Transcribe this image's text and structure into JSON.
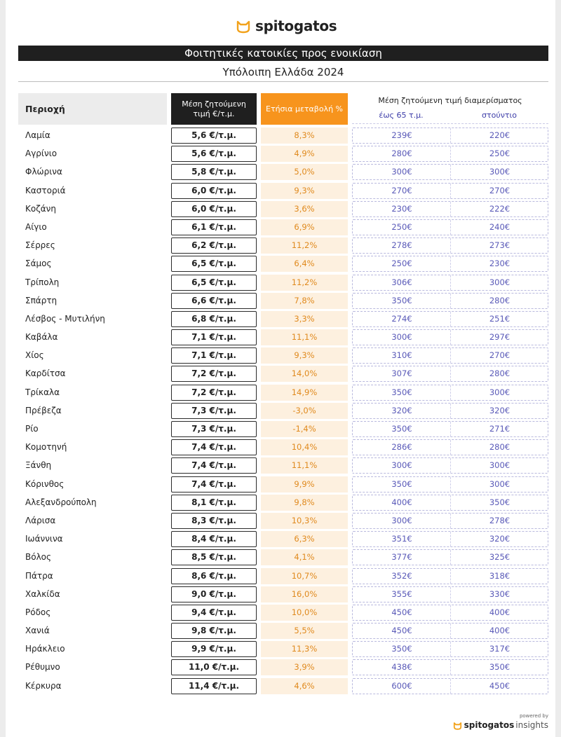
{
  "brand": {
    "name": "spitogatos"
  },
  "header": {
    "title": "Φοιτητικές κατοικίες προς ενοικίαση",
    "subtitle": "Υπόλοιπη Ελλάδα 2024"
  },
  "columns": {
    "region": "Περιοχή",
    "price": "Μέση ζητούμενη τιμή €/τ.μ.",
    "change": "Ετήσια μεταβολή %",
    "apartment": "Μέση ζητούμενη τιμή διαμερίσματος",
    "apt_up_to_65": "έως 65 τ.μ.",
    "apt_studio": "στούντιο"
  },
  "rows": [
    {
      "region": "Λαμία",
      "price": "5,6 €/τ.μ.",
      "change": "8,3%",
      "apt65": "239€",
      "studio": "220€"
    },
    {
      "region": "Αγρίνιο",
      "price": "5,6 €/τ.μ.",
      "change": "4,9%",
      "apt65": "280€",
      "studio": "250€"
    },
    {
      "region": "Φλώρινα",
      "price": "5,8 €/τ.μ.",
      "change": "5,0%",
      "apt65": "300€",
      "studio": "300€"
    },
    {
      "region": "Καστοριά",
      "price": "6,0 €/τ.μ.",
      "change": "9,3%",
      "apt65": "270€",
      "studio": "270€"
    },
    {
      "region": "Κοζάνη",
      "price": "6,0 €/τ.μ.",
      "change": "3,6%",
      "apt65": "230€",
      "studio": "222€"
    },
    {
      "region": "Αίγιο",
      "price": "6,1 €/τ.μ.",
      "change": "6,9%",
      "apt65": "250€",
      "studio": "240€"
    },
    {
      "region": "Σέρρες",
      "price": "6,2 €/τ.μ.",
      "change": "11,2%",
      "apt65": "278€",
      "studio": "273€"
    },
    {
      "region": "Σάμος",
      "price": "6,5 €/τ.μ.",
      "change": "6,4%",
      "apt65": "250€",
      "studio": "230€"
    },
    {
      "region": "Τρίπολη",
      "price": "6,5 €/τ.μ.",
      "change": "11,2%",
      "apt65": "306€",
      "studio": "300€"
    },
    {
      "region": "Σπάρτη",
      "price": "6,6 €/τ.μ.",
      "change": "7,8%",
      "apt65": "350€",
      "studio": "280€"
    },
    {
      "region": "Λέσβος - Μυτιλήνη",
      "price": "6,8 €/τ.μ.",
      "change": "3,3%",
      "apt65": "274€",
      "studio": "251€"
    },
    {
      "region": "Καβάλα",
      "price": "7,1 €/τ.μ.",
      "change": "11,1%",
      "apt65": "300€",
      "studio": "297€"
    },
    {
      "region": "Χίος",
      "price": "7,1 €/τ.μ.",
      "change": "9,3%",
      "apt65": "310€",
      "studio": "270€"
    },
    {
      "region": "Καρδίτσα",
      "price": "7,2 €/τ.μ.",
      "change": "14,0%",
      "apt65": "307€",
      "studio": "280€"
    },
    {
      "region": "Τρίκαλα",
      "price": "7,2 €/τ.μ.",
      "change": "14,9%",
      "apt65": "350€",
      "studio": "300€"
    },
    {
      "region": "Πρέβεζα",
      "price": "7,3 €/τ.μ.",
      "change": "-3,0%",
      "apt65": "320€",
      "studio": "320€"
    },
    {
      "region": "Ρίο",
      "price": "7,3 €/τ.μ.",
      "change": "-1,4%",
      "apt65": "350€",
      "studio": "271€"
    },
    {
      "region": "Κομοτηνή",
      "price": "7,4 €/τ.μ.",
      "change": "10,4%",
      "apt65": "286€",
      "studio": "280€"
    },
    {
      "region": "Ξάνθη",
      "price": "7,4 €/τ.μ.",
      "change": "11,1%",
      "apt65": "300€",
      "studio": "300€"
    },
    {
      "region": "Κόρινθος",
      "price": "7,4 €/τ.μ.",
      "change": "9,9%",
      "apt65": "350€",
      "studio": "300€"
    },
    {
      "region": "Αλεξανδρούπολη",
      "price": "8,1 €/τ.μ.",
      "change": "9,8%",
      "apt65": "400€",
      "studio": "350€"
    },
    {
      "region": "Λάρισα",
      "price": "8,3 €/τ.μ.",
      "change": "10,3%",
      "apt65": "300€",
      "studio": "278€"
    },
    {
      "region": "Ιωάννινα",
      "price": "8,4 €/τ.μ.",
      "change": "6,3%",
      "apt65": "351€",
      "studio": "320€"
    },
    {
      "region": "Βόλος",
      "price": "8,5 €/τ.μ.",
      "change": "4,1%",
      "apt65": "377€",
      "studio": "325€"
    },
    {
      "region": "Πάτρα",
      "price": "8,6 €/τ.μ.",
      "change": "10,7%",
      "apt65": "352€",
      "studio": "318€"
    },
    {
      "region": "Χαλκίδα",
      "price": "9,0 €/τ.μ.",
      "change": "16,0%",
      "apt65": "355€",
      "studio": "330€"
    },
    {
      "region": "Ρόδος",
      "price": "9,4 €/τ.μ.",
      "change": "10,0%",
      "apt65": "450€",
      "studio": "400€"
    },
    {
      "region": "Χανιά",
      "price": "9,8 €/τ.μ.",
      "change": "5,5%",
      "apt65": "450€",
      "studio": "400€"
    },
    {
      "region": "Ηράκλειο",
      "price": "9,9 €/τ.μ.",
      "change": "11,3%",
      "apt65": "350€",
      "studio": "317€"
    },
    {
      "region": "Ρέθυμνο",
      "price": "11,0 €/τ.μ.",
      "change": "3,9%",
      "apt65": "438€",
      "studio": "350€"
    },
    {
      "region": "Κέρκυρα",
      "price": "11,4 €/τ.μ.",
      "change": "4,6%",
      "apt65": "600€",
      "studio": "450€"
    }
  ],
  "footer": {
    "powered_by": "powered by",
    "brand": "spitogatos",
    "product": "insights"
  },
  "colors": {
    "accent_orange": "#f7941d",
    "header_dark": "#1f1f1f",
    "apt_value": "#5a5ab8"
  },
  "icons": {
    "logo": "cat-head-icon"
  }
}
